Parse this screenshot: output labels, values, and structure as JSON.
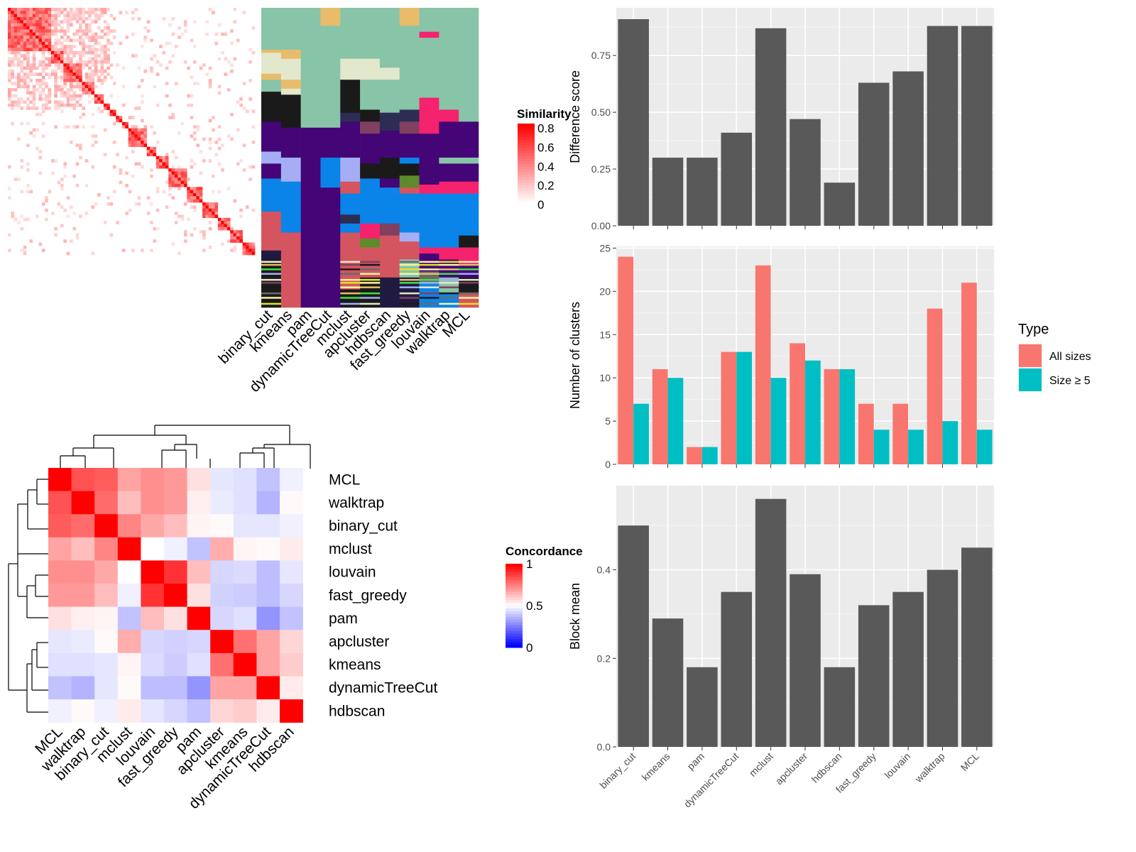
{
  "methods": [
    "binary_cut",
    "kmeans",
    "pam",
    "dynamicTreeCut",
    "mclust",
    "apcluster",
    "hdbscan",
    "fast_greedy",
    "louvain",
    "walktrap",
    "MCL"
  ],
  "similarity_legend": {
    "title": "Similarity",
    "ticks": [
      "0.8",
      "0.6",
      "0.4",
      "0.2",
      "0"
    ],
    "colors": [
      "#ffffff",
      "#ff0000"
    ]
  },
  "concordance_legend": {
    "title": "Concordance",
    "ticks": [
      "1",
      "0.5",
      "0"
    ],
    "colors": [
      "#0000ff",
      "#ffffff",
      "#ff0000"
    ]
  },
  "concordance_order": [
    "MCL",
    "walktrap",
    "binary_cut",
    "mclust",
    "louvain",
    "fast_greedy",
    "pam",
    "apcluster",
    "kmeans",
    "dynamicTreeCut",
    "hdbscan"
  ],
  "concordance_matrix": [
    [
      1.0,
      0.84,
      0.82,
      0.68,
      0.72,
      0.7,
      0.56,
      0.45,
      0.44,
      0.38,
      0.47
    ],
    [
      0.84,
      1.0,
      0.79,
      0.63,
      0.72,
      0.7,
      0.53,
      0.46,
      0.44,
      0.35,
      0.51
    ],
    [
      0.82,
      0.79,
      1.0,
      0.74,
      0.67,
      0.63,
      0.52,
      0.51,
      0.45,
      0.45,
      0.47
    ],
    [
      0.68,
      0.63,
      0.74,
      1.0,
      0.5,
      0.47,
      0.38,
      0.66,
      0.52,
      0.51,
      0.54
    ],
    [
      0.72,
      0.72,
      0.67,
      0.5,
      1.0,
      0.9,
      0.63,
      0.42,
      0.43,
      0.37,
      0.45
    ],
    [
      0.7,
      0.7,
      0.63,
      0.47,
      0.9,
      1.0,
      0.56,
      0.41,
      0.4,
      0.37,
      0.42
    ],
    [
      0.56,
      0.53,
      0.52,
      0.38,
      0.63,
      0.56,
      1.0,
      0.42,
      0.44,
      0.29,
      0.38
    ],
    [
      0.45,
      0.46,
      0.51,
      0.66,
      0.42,
      0.41,
      0.42,
      1.0,
      0.78,
      0.68,
      0.58
    ],
    [
      0.44,
      0.44,
      0.45,
      0.52,
      0.43,
      0.4,
      0.44,
      0.78,
      1.0,
      0.68,
      0.6
    ],
    [
      0.38,
      0.35,
      0.45,
      0.51,
      0.37,
      0.37,
      0.29,
      0.68,
      0.68,
      1.0,
      0.54
    ],
    [
      0.47,
      0.51,
      0.47,
      0.54,
      0.45,
      0.42,
      0.38,
      0.58,
      0.6,
      0.54,
      1.0
    ]
  ],
  "chart_data": [
    {
      "type": "bar",
      "categories": [
        "binary_cut",
        "kmeans",
        "pam",
        "dynamicTreeCut",
        "mclust",
        "apcluster",
        "hdbscan",
        "fast_greedy",
        "louvain",
        "walktrap",
        "MCL"
      ],
      "values": [
        0.91,
        0.3,
        0.3,
        0.41,
        0.87,
        0.47,
        0.19,
        0.63,
        0.68,
        0.88,
        0.88
      ],
      "ylabel": "Difference score",
      "yticks": [
        0.0,
        0.25,
        0.5,
        0.75
      ],
      "ylim": [
        0,
        0.96
      ],
      "bar_color": "#595959"
    },
    {
      "type": "bar",
      "categories": [
        "binary_cut",
        "kmeans",
        "pam",
        "dynamicTreeCut",
        "mclust",
        "apcluster",
        "hdbscan",
        "fast_greedy",
        "louvain",
        "walktrap",
        "MCL"
      ],
      "series": [
        {
          "name": "All sizes",
          "values": [
            24,
            11,
            2,
            13,
            23,
            14,
            11,
            7,
            7,
            18,
            21
          ],
          "color": "#f8766d"
        },
        {
          "name": "Size ≥ 5",
          "values": [
            7,
            10,
            2,
            13,
            10,
            12,
            11,
            4,
            4,
            5,
            4
          ],
          "color": "#00bfc4"
        }
      ],
      "ylabel": "Number of clusters",
      "yticks": [
        0,
        5,
        10,
        15,
        20,
        25
      ],
      "ylim": [
        0,
        25.2
      ],
      "legend": {
        "title": "Type",
        "position": "right"
      }
    },
    {
      "type": "bar",
      "categories": [
        "binary_cut",
        "kmeans",
        "pam",
        "dynamicTreeCut",
        "mclust",
        "apcluster",
        "hdbscan",
        "fast_greedy",
        "louvain",
        "walktrap",
        "MCL"
      ],
      "values": [
        0.5,
        0.29,
        0.18,
        0.35,
        0.56,
        0.39,
        0.18,
        0.32,
        0.35,
        0.4,
        0.45
      ],
      "ylabel": "Block mean",
      "yticks": [
        0.0,
        0.2,
        0.4
      ],
      "ylim": [
        0,
        0.59
      ],
      "bar_color": "#595959"
    }
  ]
}
